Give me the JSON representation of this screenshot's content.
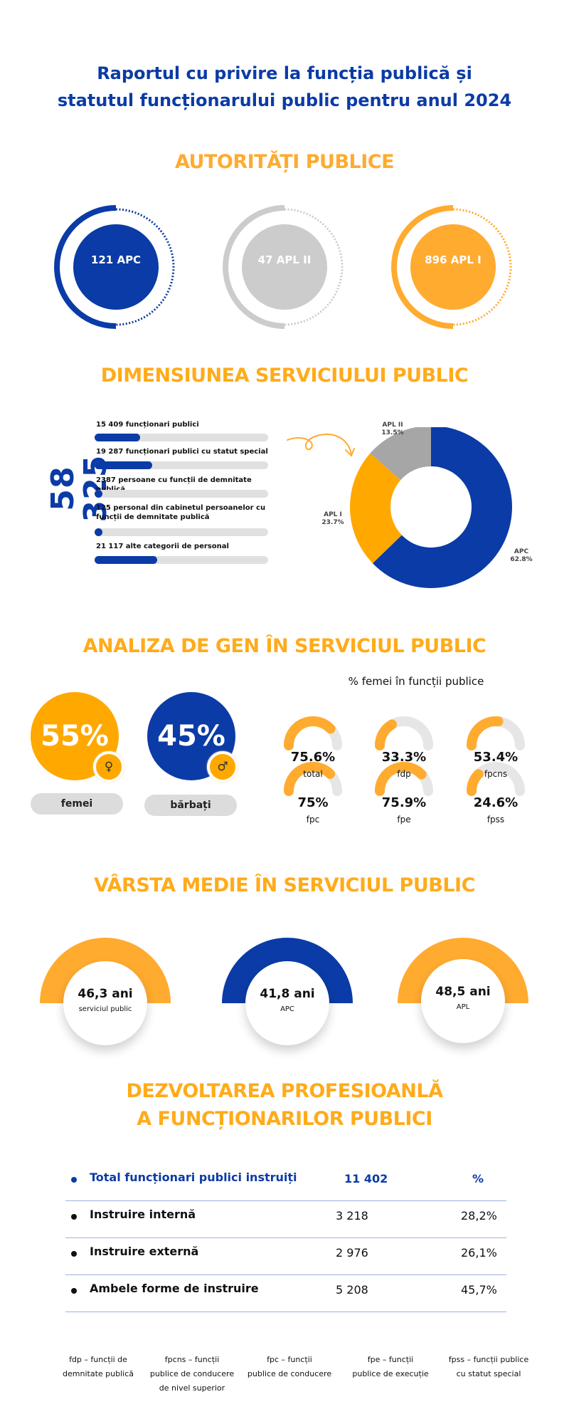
{
  "title": {
    "line1": "Raportul cu privire la funcția publică și",
    "line2": "statutul funcționarului public pentru anul 2024"
  },
  "colors": {
    "blue": "#0B3BA6",
    "orange": "#FFAB30",
    "grey": "#CCCCCC",
    "track": "#E6E6E6"
  },
  "authorities": {
    "heading": "AUTORITĂȚI PUBLICE",
    "items": [
      {
        "label": "121 APC",
        "color": "#0B3BA6"
      },
      {
        "label": "47 APL II",
        "color": "#CCCCCC"
      },
      {
        "label": "896 APL I",
        "color": "#FFAB30"
      }
    ]
  },
  "dimension": {
    "heading": "DIMENSIUNEA SERVICIULUI PUBLIC",
    "total": "58 325",
    "bars": [
      {
        "label": "15 409 funcționari publici",
        "value": 15409
      },
      {
        "label": "19 287 funcționari publici cu statut special",
        "value": 19287
      },
      {
        "label": "2387  persoane cu funcții de demnitate publică",
        "value": 2387
      },
      {
        "label": "125 personal din cabinetul persoanelor cu funcții de demnitate publică",
        "value": 125
      },
      {
        "label": "21 117 alte categorii de personal",
        "value": 21117
      }
    ]
  },
  "chart_data": {
    "type": "pie",
    "donut": true,
    "title": "",
    "slices": [
      {
        "name": "APC",
        "label": "62.8%",
        "value": 62.8,
        "color": "#0B3BA6"
      },
      {
        "name": "APL I",
        "label": "23.7%",
        "value": 23.7,
        "color": "#FFA800"
      },
      {
        "name": "APL II",
        "label": "13.5%",
        "value": 13.5,
        "color": "#A6A6A6"
      }
    ]
  },
  "gender": {
    "heading": "ANALIZA DE GEN ÎN SERVICIUL PUBLIC",
    "women": {
      "value": "55%",
      "label": "femei",
      "symbol": "♀"
    },
    "men": {
      "value": "45%",
      "label": "bărbați",
      "symbol": "♂"
    },
    "gauges_title": "% femei în funcții publice",
    "gauges": [
      {
        "value_label": "75.6%",
        "value": 75.6,
        "label": "total"
      },
      {
        "value_label": "33.3%",
        "value": 33.3,
        "label": "fdp"
      },
      {
        "value_label": "53.4%",
        "value": 53.4,
        "label": "fpcns"
      },
      {
        "value_label": "75%",
        "value": 75,
        "label": "fpc"
      },
      {
        "value_label": "75.9%",
        "value": 75.9,
        "label": "fpe"
      },
      {
        "value_label": "24.6%",
        "value": 24.6,
        "label": "fpss"
      }
    ]
  },
  "age": {
    "heading": "VÂRSTA MEDIE ÎN SERVICIUL PUBLIC",
    "items": [
      {
        "value": "46,3 ani",
        "label": "serviciul public",
        "color": "#FFAB30"
      },
      {
        "value": "41,8 ani",
        "label": "APC",
        "color": "#0B3BA6"
      },
      {
        "value": "48,5 ani",
        "label": "APL",
        "color": "#FFAB30"
      }
    ]
  },
  "development": {
    "heading_line1": "DEZVOLTAREA PROFESIOANLĂ",
    "heading_line2": "A FUNCȚIONARILOR PUBLICI",
    "header": {
      "name": "Total funcționari publici instruiți",
      "value": "11 402",
      "pct": "%"
    },
    "rows": [
      {
        "name": "Instruire internă",
        "value": "3 218",
        "pct": "28,2%"
      },
      {
        "name": "Instruire externă",
        "value": "2 976",
        "pct": "26,1%"
      },
      {
        "name": "Ambele forme de instruire",
        "value": "5 208",
        "pct": "45,7%"
      }
    ]
  },
  "footnotes": [
    {
      "line1": "fdp – funcții de",
      "line2": "demnitate publică",
      "line3": ""
    },
    {
      "line1": "fpcns – funcții",
      "line2": "publice de conducere",
      "line3": "de nivel superior"
    },
    {
      "line1": "fpc – funcții",
      "line2": "publice de conducere",
      "line3": ""
    },
    {
      "line1": "fpe – funcții",
      "line2": "publice de execuție",
      "line3": ""
    },
    {
      "line1": "fpss – funcții publice",
      "line2": "cu statut special",
      "line3": ""
    }
  ]
}
